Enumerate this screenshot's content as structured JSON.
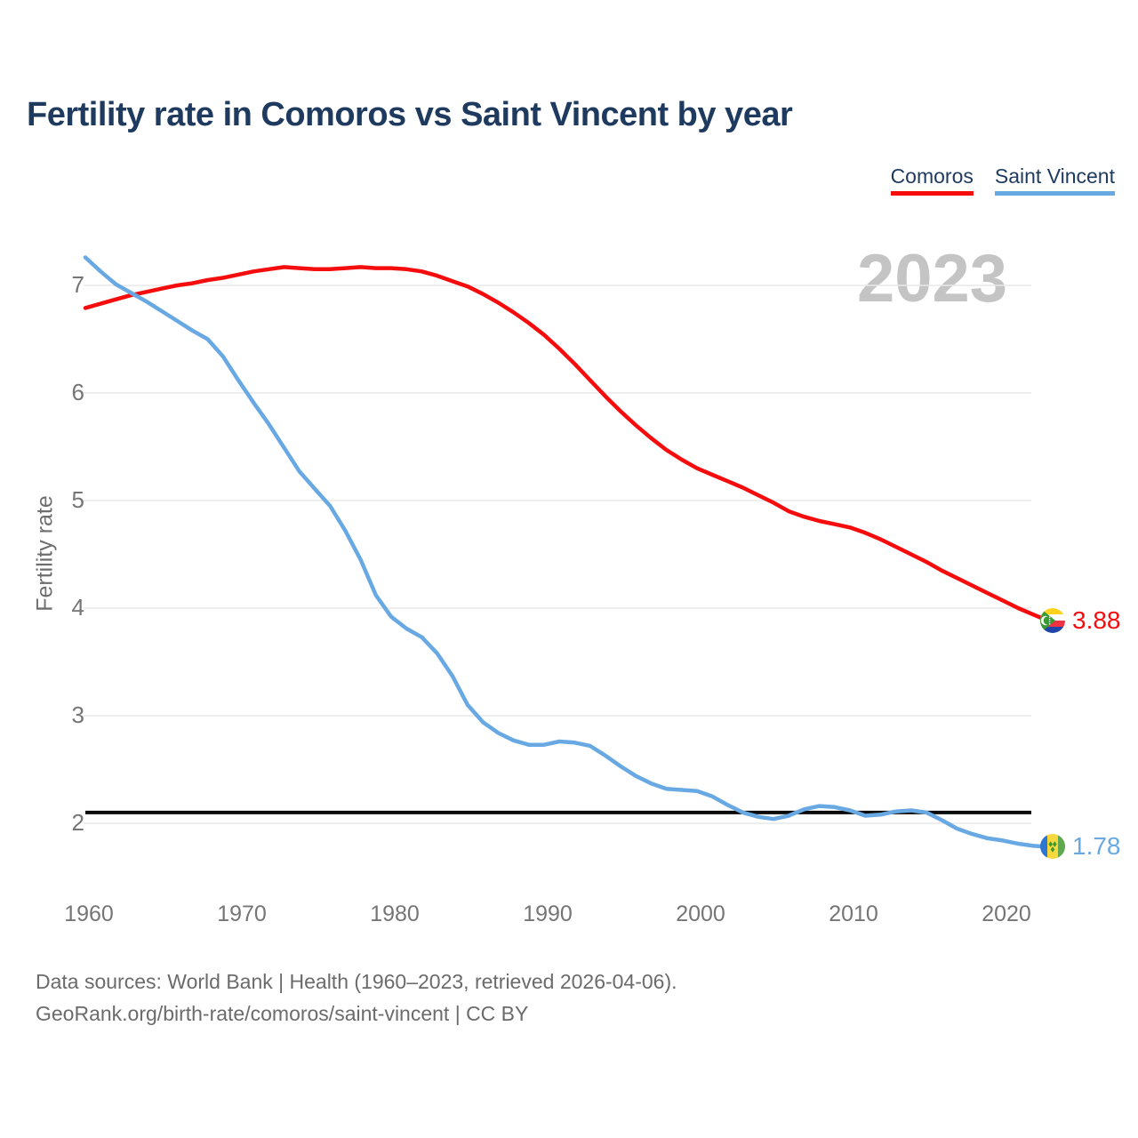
{
  "header": {
    "title": "Fertility rate in Comoros vs Saint Vincent by year"
  },
  "legend": [
    {
      "label": "Comoros",
      "color": "#f50d0d"
    },
    {
      "label": "Saint Vincent",
      "color": "#68a9e3"
    }
  ],
  "watermark": "2023",
  "y_axis": {
    "label": "Fertility rate",
    "ticks": [
      7,
      6,
      5,
      4,
      3,
      2
    ]
  },
  "x_axis": {
    "ticks": [
      1960,
      1970,
      1980,
      1990,
      2000,
      2010,
      2020
    ]
  },
  "reference_line": {
    "value": 2.1,
    "color": "#0a0a0a"
  },
  "end_labels": [
    {
      "series": "Comoros",
      "value": "3.88",
      "color": "#f50d0d",
      "flag": "comoros-flag"
    },
    {
      "series": "Saint Vincent",
      "value": "1.78",
      "color": "#68a9e3",
      "flag": "saint-vincent-flag"
    }
  ],
  "footer": {
    "line1": "Data sources: World Bank | Health (1960–2023, retrieved 2026-04-06).",
    "line2": "GeoRank.org/birth-rate/comoros/saint-vincent | CC BY"
  },
  "chart_data": {
    "type": "line",
    "title": "Fertility rate in Comoros vs Saint Vincent by year",
    "xlabel": "",
    "ylabel": "Fertility rate",
    "xlim": [
      1960,
      2023
    ],
    "ylim": [
      1.6,
      7.5
    ],
    "grid": "horizontal",
    "legend_position": "top-right",
    "watermark": "2023",
    "reference_line_y": 2.1,
    "x": [
      1960,
      1961,
      1962,
      1963,
      1964,
      1965,
      1966,
      1967,
      1968,
      1969,
      1970,
      1971,
      1972,
      1973,
      1974,
      1975,
      1976,
      1977,
      1978,
      1979,
      1980,
      1981,
      1982,
      1983,
      1984,
      1985,
      1986,
      1987,
      1988,
      1989,
      1990,
      1991,
      1992,
      1993,
      1994,
      1995,
      1996,
      1997,
      1998,
      1999,
      2000,
      2001,
      2002,
      2003,
      2004,
      2005,
      2006,
      2007,
      2008,
      2009,
      2010,
      2011,
      2012,
      2013,
      2014,
      2015,
      2016,
      2017,
      2018,
      2019,
      2020,
      2021,
      2022,
      2023
    ],
    "series": [
      {
        "name": "Comoros",
        "color": "#f50d0d",
        "end_label": 3.88,
        "values": [
          6.79,
          6.83,
          6.87,
          6.91,
          6.94,
          6.97,
          7.0,
          7.02,
          7.05,
          7.07,
          7.1,
          7.13,
          7.15,
          7.17,
          7.16,
          7.15,
          7.15,
          7.16,
          7.17,
          7.16,
          7.16,
          7.15,
          7.13,
          7.09,
          7.04,
          6.99,
          6.92,
          6.84,
          6.75,
          6.65,
          6.54,
          6.41,
          6.27,
          6.12,
          5.97,
          5.83,
          5.7,
          5.58,
          5.47,
          5.38,
          5.3,
          5.24,
          5.18,
          5.12,
          5.05,
          4.98,
          4.9,
          4.85,
          4.81,
          4.78,
          4.75,
          4.7,
          4.64,
          4.57,
          4.5,
          4.43,
          4.35,
          4.28,
          4.21,
          4.14,
          4.07,
          4.0,
          3.94,
          3.88
        ]
      },
      {
        "name": "Saint Vincent",
        "color": "#68a9e3",
        "end_label": 1.78,
        "values": [
          7.26,
          7.13,
          7.01,
          6.93,
          6.85,
          6.76,
          6.67,
          6.58,
          6.5,
          6.34,
          6.12,
          5.91,
          5.71,
          5.49,
          5.27,
          5.11,
          4.95,
          4.72,
          4.45,
          4.12,
          3.92,
          3.81,
          3.73,
          3.58,
          3.37,
          3.1,
          2.94,
          2.84,
          2.77,
          2.73,
          2.73,
          2.76,
          2.75,
          2.72,
          2.63,
          2.53,
          2.44,
          2.37,
          2.32,
          2.31,
          2.3,
          2.25,
          2.17,
          2.1,
          2.06,
          2.04,
          2.07,
          2.13,
          2.16,
          2.15,
          2.12,
          2.07,
          2.08,
          2.11,
          2.12,
          2.1,
          2.03,
          1.95,
          1.9,
          1.86,
          1.84,
          1.81,
          1.79,
          1.78
        ]
      }
    ]
  }
}
